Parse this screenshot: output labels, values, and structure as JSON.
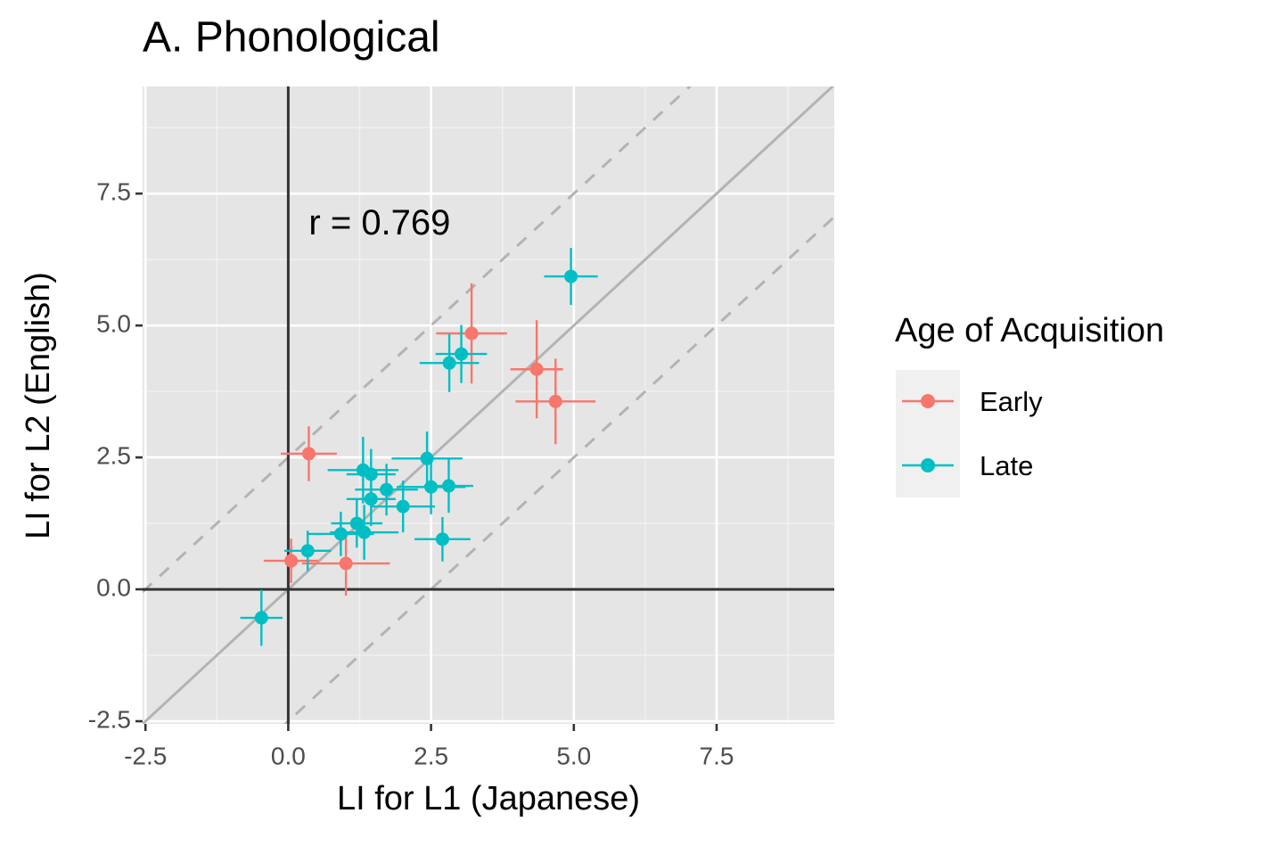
{
  "chart_data": {
    "type": "scatter",
    "title": "A. Phonological",
    "x_label": "LI for L1 (Japanese)",
    "y_label": "LI for L2 (English)",
    "annotation": "r =  0.769",
    "annotation_at": [
      1.6,
      6.9
    ],
    "legend_title": "Age of Acquisition",
    "legend_position": "right",
    "grid": true,
    "xlim": [
      -2.55,
      9.56
    ],
    "ylim": [
      -2.55,
      9.53
    ],
    "xticks": [
      -2.5,
      {
        "value": 0,
        "label": "0.0"
      },
      2.5,
      {
        "value": 5,
        "label": "5.0"
      },
      7.5
    ],
    "yticks": [
      -2.5,
      {
        "value": 0,
        "label": "0.0"
      },
      2.5,
      {
        "value": 5,
        "label": "5.0"
      },
      7.5
    ],
    "hline": 0,
    "vline": 0,
    "reference_lines": [
      {
        "slope": 1,
        "intercept": 0,
        "style": "solid"
      },
      {
        "slope": 1,
        "intercept": 2.5,
        "style": "dashed"
      },
      {
        "slope": 1,
        "intercept": -2.5,
        "style": "dashed"
      }
    ],
    "series": [
      {
        "name": "Early",
        "color": "#f8766d",
        "x": [
          3.21,
          4.35,
          4.68,
          0.36,
          0.05,
          1.01
        ],
        "values": [
          4.85,
          4.17,
          3.56,
          2.57,
          0.54,
          0.49
        ],
        "xerr": [
          0.62,
          0.46,
          0.7,
          0.49,
          0.48,
          0.77
        ],
        "yerr": [
          0.95,
          0.93,
          0.81,
          0.52,
          0.42,
          0.61
        ]
      },
      {
        "name": "Late",
        "color": "#00bfc4",
        "x": [
          4.95,
          3.03,
          2.82,
          2.43,
          1.31,
          1.45,
          2.5,
          2.81,
          1.72,
          1.45,
          2.01,
          1.2,
          0.92,
          1.33,
          2.7,
          0.34,
          -0.47
        ],
        "values": [
          5.93,
          4.46,
          4.29,
          2.48,
          2.26,
          2.18,
          1.94,
          1.96,
          1.89,
          1.71,
          1.57,
          1.25,
          1.05,
          1.08,
          0.95,
          0.73,
          -0.54
        ],
        "xerr": [
          0.47,
          0.45,
          0.52,
          0.62,
          0.62,
          0.43,
          0.6,
          0.43,
          0.55,
          0.43,
          0.56,
          0.45,
          0.58,
          0.6,
          0.49,
          0.41,
          0.37
        ],
        "yerr": [
          0.54,
          0.55,
          0.55,
          0.51,
          0.63,
          0.48,
          0.52,
          0.51,
          0.49,
          0.51,
          0.49,
          0.46,
          0.42,
          0.52,
          0.42,
          0.38,
          0.53
        ]
      }
    ]
  }
}
